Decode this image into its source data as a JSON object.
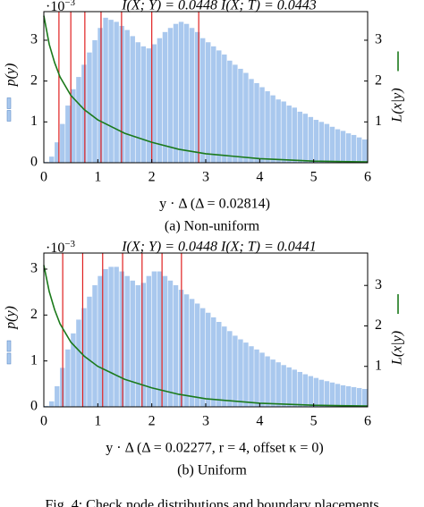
{
  "chart_data": [
    {
      "type": "histogram",
      "title": "I(X; Y) = 0.0448 I(X; T) = 0.0443",
      "y_multiplier_base": "·10",
      "y_multiplier_exponent": "−3",
      "xlabel": "y · Δ (Δ = 0.02814)",
      "ylabel": "p(y)",
      "y2label": "L(x|y)",
      "caption": "(a) Non-uniform",
      "bins": [
        0,
        0.1,
        0.2,
        0.3,
        0.4,
        0.5,
        0.6,
        0.7,
        0.8,
        0.9,
        1.0,
        1.1,
        1.2,
        1.3,
        1.4,
        1.5,
        1.6,
        1.7,
        1.8,
        1.9,
        2.0,
        2.1,
        2.2,
        2.3,
        2.4,
        2.5,
        2.6,
        2.7,
        2.8,
        2.9,
        3.0,
        3.1,
        3.2,
        3.3,
        3.4,
        3.5,
        3.6,
        3.7,
        3.8,
        3.9,
        4.0,
        4.1,
        4.2,
        4.3,
        4.4,
        4.5,
        4.6,
        4.7,
        4.8,
        4.9,
        5.0,
        5.1,
        5.2,
        5.3,
        5.4,
        5.5,
        5.6,
        5.7,
        5.8,
        5.9,
        6.0
      ],
      "values": [
        0.02,
        0.15,
        0.5,
        0.95,
        1.4,
        1.8,
        2.1,
        2.4,
        2.7,
        3.0,
        3.3,
        3.55,
        3.5,
        3.45,
        3.35,
        3.25,
        3.1,
        2.95,
        2.85,
        2.8,
        2.9,
        3.05,
        3.2,
        3.3,
        3.4,
        3.45,
        3.4,
        3.3,
        3.2,
        3.05,
        2.95,
        2.85,
        2.75,
        2.65,
        2.5,
        2.4,
        2.3,
        2.2,
        2.05,
        1.95,
        1.85,
        1.75,
        1.65,
        1.55,
        1.5,
        1.4,
        1.35,
        1.25,
        1.2,
        1.12,
        1.05,
        1.0,
        0.95,
        0.88,
        0.82,
        0.78,
        0.72,
        0.68,
        0.62,
        0.57
      ],
      "color": "#a9c8ee",
      "curve": {
        "color": "#1b7a1b",
        "axis": "y2",
        "x": [
          0,
          0.1,
          0.2,
          0.3,
          0.5,
          0.75,
          1,
          1.5,
          2,
          2.5,
          3,
          4,
          5,
          6
        ],
        "values": [
          3.6,
          2.9,
          2.45,
          2.1,
          1.65,
          1.3,
          1.05,
          0.72,
          0.5,
          0.33,
          0.22,
          0.1,
          0.04,
          0.02
        ]
      },
      "boundaries": [
        0.28,
        0.5,
        0.76,
        1.06,
        1.44,
        2.0,
        2.87
      ],
      "boundary_color": "#e02020",
      "xlim": [
        0,
        6
      ],
      "xticks": [
        0,
        1,
        2,
        3,
        4,
        5,
        6
      ],
      "ylim": [
        0,
        3.7
      ],
      "yticks": [
        0,
        1,
        2,
        3
      ],
      "y2lim": [
        0,
        3.7
      ],
      "y2ticks": [
        1,
        2,
        3
      ]
    },
    {
      "type": "histogram",
      "title": "I(X; Y) = 0.0448 I(X; T) = 0.0441",
      "y_multiplier_base": "·10",
      "y_multiplier_exponent": "−3",
      "xlabel": "y · Δ (Δ = 0.02277, r = 4, offset κ = 0)",
      "ylabel": "p(y)",
      "y2label": "L(x|y)",
      "caption": "(b) Uniform",
      "bins": [
        0,
        0.1,
        0.2,
        0.3,
        0.4,
        0.5,
        0.6,
        0.7,
        0.8,
        0.9,
        1.0,
        1.1,
        1.2,
        1.3,
        1.4,
        1.5,
        1.6,
        1.7,
        1.8,
        1.9,
        2.0,
        2.1,
        2.2,
        2.3,
        2.4,
        2.5,
        2.6,
        2.7,
        2.8,
        2.9,
        3.0,
        3.1,
        3.2,
        3.3,
        3.4,
        3.5,
        3.6,
        3.7,
        3.8,
        3.9,
        4.0,
        4.1,
        4.2,
        4.3,
        4.4,
        4.5,
        4.6,
        4.7,
        4.8,
        4.9,
        5.0,
        5.1,
        5.2,
        5.3,
        5.4,
        5.5,
        5.6,
        5.7,
        5.8,
        5.9,
        6.0
      ],
      "values": [
        0.02,
        0.12,
        0.45,
        0.85,
        1.25,
        1.6,
        1.9,
        2.15,
        2.4,
        2.65,
        2.85,
        3.0,
        3.05,
        3.05,
        2.95,
        2.85,
        2.75,
        2.65,
        2.7,
        2.85,
        2.95,
        2.95,
        2.85,
        2.75,
        2.65,
        2.55,
        2.45,
        2.35,
        2.25,
        2.15,
        2.05,
        1.95,
        1.85,
        1.75,
        1.65,
        1.55,
        1.47,
        1.4,
        1.32,
        1.25,
        1.18,
        1.1,
        1.03,
        0.97,
        0.91,
        0.86,
        0.81,
        0.76,
        0.71,
        0.67,
        0.63,
        0.59,
        0.56,
        0.53,
        0.5,
        0.47,
        0.45,
        0.43,
        0.41,
        0.39
      ],
      "color": "#a9c8ee",
      "curve": {
        "color": "#1b7a1b",
        "axis": "y2",
        "x": [
          0,
          0.1,
          0.2,
          0.3,
          0.5,
          0.75,
          1,
          1.5,
          2,
          2.5,
          3,
          4,
          5,
          6
        ],
        "values": [
          3.5,
          2.85,
          2.4,
          2.05,
          1.6,
          1.25,
          1.0,
          0.68,
          0.47,
          0.31,
          0.2,
          0.09,
          0.04,
          0.02
        ]
      },
      "boundaries": [
        0.35,
        0.72,
        1.09,
        1.46,
        1.82,
        2.19,
        2.55
      ],
      "boundary_color": "#e02020",
      "xlim": [
        0,
        6
      ],
      "xticks": [
        0,
        1,
        2,
        3,
        4,
        5,
        6
      ],
      "ylim": [
        0,
        3.35
      ],
      "yticks": [
        0,
        1,
        2,
        3
      ],
      "y2lim": [
        0,
        3.8
      ],
      "y2ticks": [
        1,
        2,
        3
      ]
    }
  ],
  "figure_caption": "Fig. 4: Check node distributions and boundary placements"
}
